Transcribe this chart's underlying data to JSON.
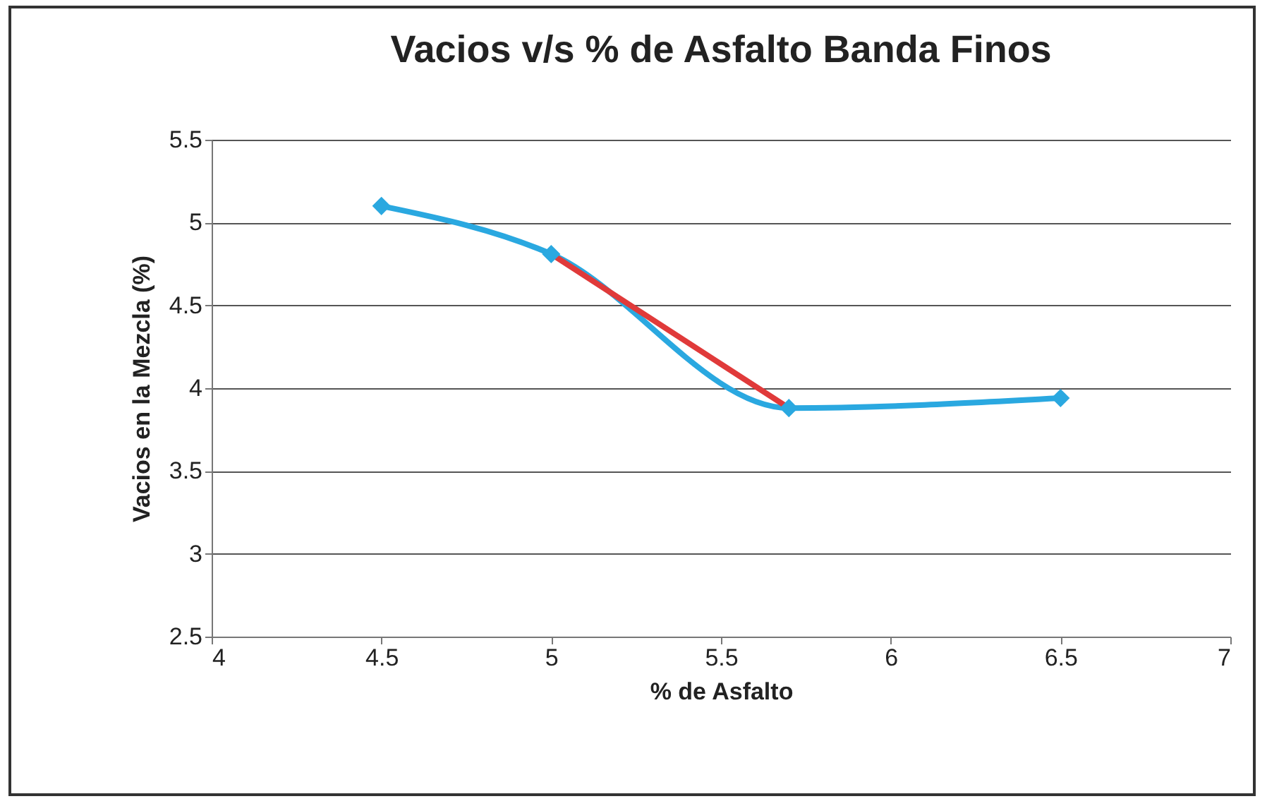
{
  "chart_data": {
    "type": "line",
    "title": "Vacios v/s % de Asfalto Banda Finos",
    "xlabel": "% de Asfalto",
    "ylabel": "Vacios  en la Mezcla (%)",
    "xlim": [
      4,
      7
    ],
    "xticks": [
      4,
      4.5,
      5,
      5.5,
      6,
      6.5,
      7
    ],
    "ylim": [
      2.5,
      5.5
    ],
    "yticks": [
      2.5,
      3,
      3.5,
      4,
      4.5,
      5,
      5.5
    ],
    "grid": "y",
    "marker": "diamond",
    "series": [
      {
        "color": "#2aa8e0",
        "x": [
          4.5,
          5,
          5.7,
          6.5
        ],
        "values": [
          5.1,
          4.81,
          3.88,
          3.94
        ]
      },
      {
        "color": "#e03a3a",
        "x": [
          5,
          5.7
        ],
        "values": [
          4.81,
          3.88
        ],
        "marker": "none"
      }
    ]
  }
}
